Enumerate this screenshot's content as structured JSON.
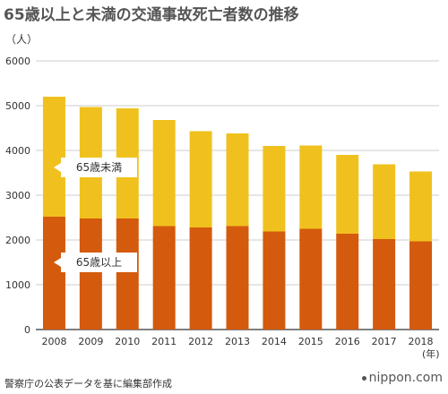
{
  "title": "65歳以上と未満の交通事故死亡者数の推移",
  "unit_label": "（人）",
  "x_unit_label": "(年)",
  "source": "警察庁の公表データを基に編集部作成",
  "brand": "nippon.com",
  "colors": {
    "under65": "#f0c11e",
    "over65": "#d45a0d",
    "grid": "#bbbbbb",
    "axis": "#333333"
  },
  "callouts": {
    "under65": "65歳未満",
    "over65": "65歳以上"
  },
  "chart_data": {
    "type": "bar",
    "stacked": true,
    "categories": [
      "2008",
      "2009",
      "2010",
      "2011",
      "2012",
      "2013",
      "2014",
      "2015",
      "2016",
      "2017",
      "2018"
    ],
    "series": [
      {
        "name": "65歳以上",
        "values": [
          2520,
          2480,
          2480,
          2310,
          2280,
          2310,
          2190,
          2250,
          2140,
          2020,
          1970
        ]
      },
      {
        "name": "65歳未満",
        "values": [
          2680,
          2490,
          2460,
          2370,
          2150,
          2070,
          1910,
          1860,
          1760,
          1670,
          1560
        ]
      }
    ],
    "yticks": [
      0,
      1000,
      2000,
      3000,
      4000,
      5000,
      6000
    ],
    "ylim": [
      0,
      6000
    ],
    "grid": true
  }
}
